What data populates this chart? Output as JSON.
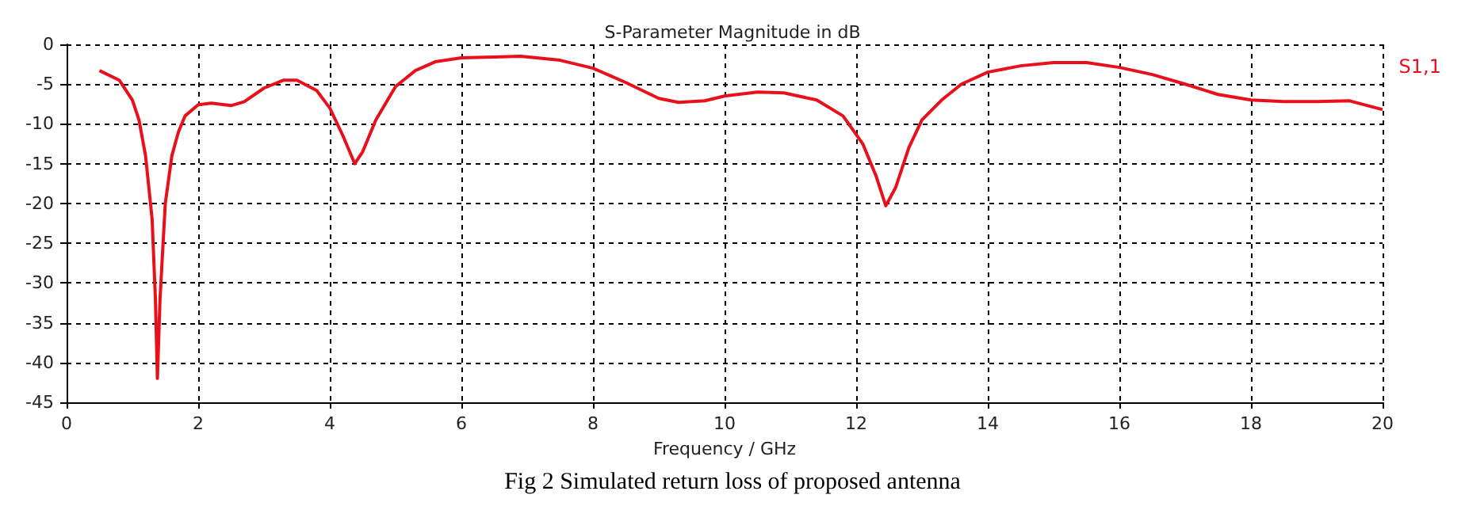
{
  "chart_data": {
    "type": "line",
    "title": "S-Parameter Magnitude in dB",
    "xlabel": "Frequency / GHz",
    "annotations": [
      "Fig 2 Simulated return loss of proposed antenna"
    ],
    "x": [
      0.5,
      0.8,
      1.0,
      1.1,
      1.2,
      1.3,
      1.35,
      1.38,
      1.42,
      1.5,
      1.6,
      1.7,
      1.8,
      2.0,
      2.2,
      2.5,
      2.7,
      3.0,
      3.3,
      3.5,
      3.8,
      4.0,
      4.2,
      4.38,
      4.5,
      4.7,
      5.0,
      5.3,
      5.6,
      6.0,
      6.5,
      6.9,
      7.5,
      8.0,
      8.5,
      9.0,
      9.3,
      9.7,
      10.0,
      10.5,
      10.9,
      11.4,
      11.8,
      12.1,
      12.3,
      12.45,
      12.6,
      12.8,
      13.0,
      13.3,
      13.6,
      14.0,
      14.5,
      15.0,
      15.5,
      16.0,
      16.5,
      17.0,
      17.5,
      18.0,
      18.5,
      19.0,
      19.5,
      20.0
    ],
    "series": [
      {
        "name": "S1,1",
        "color": "#e8101a",
        "values": [
          -3.3,
          -4.5,
          -7,
          -9.5,
          -14,
          -22,
          -32,
          -42,
          -32,
          -20,
          -14,
          -11,
          -9,
          -7.6,
          -7.4,
          -7.7,
          -7.2,
          -5.5,
          -4.5,
          -4.5,
          -5.8,
          -8,
          -11.5,
          -15,
          -13.5,
          -9.5,
          -5.3,
          -3.3,
          -2.2,
          -1.7,
          -1.6,
          -1.5,
          -2,
          -3,
          -4.8,
          -6.8,
          -7.3,
          -7.1,
          -6.5,
          -6,
          -6.1,
          -7,
          -9,
          -12.5,
          -16.5,
          -20.3,
          -18,
          -13,
          -9.5,
          -7,
          -5,
          -3.5,
          -2.7,
          -2.3,
          -2.3,
          -2.9,
          -3.8,
          -5,
          -6.3,
          -7,
          -7.2,
          -7.2,
          -7.1,
          -8.2
        ]
      }
    ],
    "xlim": [
      0,
      20
    ],
    "xticks": [
      0,
      2,
      4,
      6,
      8,
      10,
      12,
      14,
      16,
      18,
      20
    ],
    "ylim": [
      -45,
      0
    ],
    "yticks": [
      -45,
      -40,
      -35,
      -30,
      -25,
      -20,
      -15,
      -10,
      -5,
      0
    ],
    "grid": true,
    "legend": "top right",
    "marker": "none",
    "line_style": "solid"
  }
}
